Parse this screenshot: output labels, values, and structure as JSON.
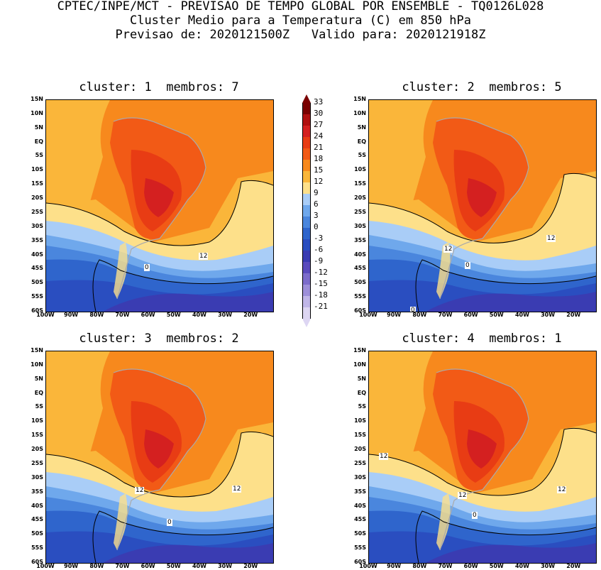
{
  "header": {
    "line1": "CPTEC/INPE/MCT - PREVISAO DE TEMPO GLOBAL POR ENSEMBLE - TQ0126L028",
    "line2": "Cluster Medio para a Temperatura (C) em 850 hPa",
    "line3": "Previsao de: 2020121500Z   Valido para: 2020121918Z"
  },
  "panels": [
    {
      "title": "cluster: 1  membros: 7",
      "contour_labels": [
        "12",
        "0"
      ]
    },
    {
      "title": "cluster: 2  membros: 5",
      "contour_labels": [
        "12",
        "12",
        "0",
        "0"
      ]
    },
    {
      "title": "cluster: 3  membros: 2",
      "contour_labels": [
        "12",
        "12",
        "0"
      ]
    },
    {
      "title": "cluster: 4  membros: 1",
      "contour_labels": [
        "12",
        "12",
        "12",
        "0"
      ]
    }
  ],
  "lat_labels": [
    "15N",
    "10N",
    "5N",
    "EQ",
    "5S",
    "10S",
    "15S",
    "20S",
    "25S",
    "30S",
    "35S",
    "40S",
    "45S",
    "50S",
    "55S",
    "60S"
  ],
  "lon_labels": [
    "100W",
    "90W",
    "80W",
    "70W",
    "60W",
    "50W",
    "40W",
    "30W",
    "20W"
  ],
  "colorbar": {
    "levels": [
      "33",
      "30",
      "27",
      "24",
      "21",
      "18",
      "15",
      "12",
      "9",
      "6",
      "3",
      "0",
      "-3",
      "-6",
      "-9",
      "-12",
      "-15",
      "-18",
      "-21"
    ],
    "colors": [
      "#7a0000",
      "#b01010",
      "#d42020",
      "#e83c14",
      "#f25a16",
      "#f7891d",
      "#fab63a",
      "#fde08a",
      "#a9cdf7",
      "#6fa8ec",
      "#4a86dd",
      "#2f65cc",
      "#2a4ec0",
      "#3a3cb2",
      "#5a4bbd",
      "#7c6ccb",
      "#9d8fd9",
      "#c0b6e8",
      "#ddd6f3"
    ]
  }
}
